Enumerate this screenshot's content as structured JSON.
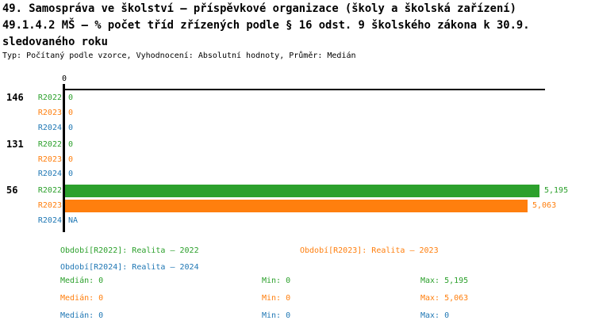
{
  "title": {
    "line1": "49. Samospráva ve školství – příspěvkové organizace (školy a školská zařízení)",
    "line2": "49.1.4.2 MŠ – % počet tříd zřízených podle § 16 odst. 9 školského zákona k 30.9.",
    "line3": "sledovaného roku",
    "meta": "Typ: Počítaný podle vzorce, Vyhodnocení: Absolutní hodnoty, Průměr: Medián"
  },
  "colors": {
    "r2022": "#2ca02c",
    "r2023": "#ff7f0e",
    "r2024": "#1f77b4",
    "axis": "#000000",
    "background": "#ffffff"
  },
  "chart_data": {
    "type": "bar",
    "orientation": "horizontal",
    "x_axis": {
      "position": "top",
      "tick_labels": [
        "0"
      ],
      "xlim": [
        0,
        5195
      ],
      "grid": false
    },
    "series_names": [
      "R2022",
      "R2023",
      "R2024"
    ],
    "categories": [
      "146",
      "131",
      "56"
    ],
    "groups": [
      {
        "label": "146",
        "rows": [
          {
            "series": "R2022",
            "value": 0,
            "display": "0"
          },
          {
            "series": "R2023",
            "value": 0,
            "display": "0"
          },
          {
            "series": "R2024",
            "value": 0,
            "display": "0"
          }
        ]
      },
      {
        "label": "131",
        "rows": [
          {
            "series": "R2022",
            "value": 0,
            "display": "0"
          },
          {
            "series": "R2023",
            "value": 0,
            "display": "0"
          },
          {
            "series": "R2024",
            "value": 0,
            "display": "0"
          }
        ]
      },
      {
        "label": "56",
        "rows": [
          {
            "series": "R2022",
            "value": 5195,
            "display": "5,195"
          },
          {
            "series": "R2023",
            "value": 5063,
            "display": "5,063"
          },
          {
            "series": "R2024",
            "value": null,
            "display": "NA"
          }
        ]
      }
    ]
  },
  "legend": {
    "r2022": "Období[R2022]: Realita – 2022",
    "r2023": "Období[R2023]: Realita – 2023",
    "r2024": "Období[R2024]: Realita – 2024"
  },
  "stats": [
    {
      "series": "R2022",
      "median": "Medián: 0",
      "min": "Min: 0",
      "max": "Max: 5,195"
    },
    {
      "series": "R2023",
      "median": "Medián: 0",
      "min": "Min: 0",
      "max": "Max: 5,063"
    },
    {
      "series": "R2024",
      "median": "Medián: 0",
      "min": "Min: 0",
      "max": "Max: 0"
    }
  ]
}
